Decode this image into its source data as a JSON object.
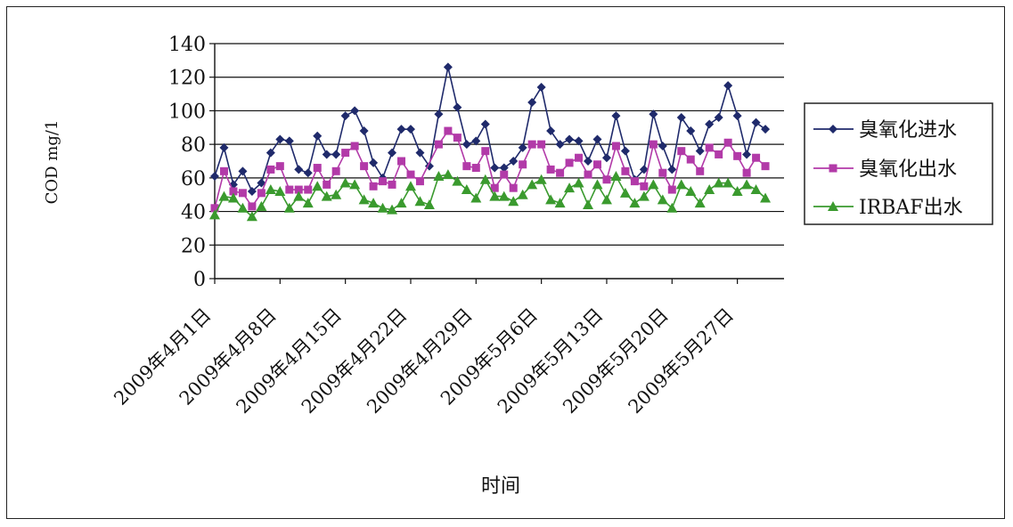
{
  "chart_data": {
    "type": "line",
    "title": "",
    "xlabel": "时间",
    "ylabel": "COD mg/1",
    "ylim": [
      0,
      140
    ],
    "yticks": [
      "0",
      "20",
      "40",
      "60",
      "80",
      "100",
      "120",
      "140"
    ],
    "grid": true,
    "legend_position": "right",
    "x_tick_labels": [
      "2009年4月1日",
      "2009年4月8日",
      "2009年4月15日",
      "2009年4月22日",
      "2009年4月29日",
      "2009年5月6日",
      "2009年5月13日",
      "2009年5月20日",
      "2009年5月27日"
    ],
    "x_start": "2009-04-01",
    "x_end": "2009-06-01",
    "series": [
      {
        "name": "臭氧化进水",
        "color": "#1f2a6b",
        "marker": "diamond",
        "values": [
          61,
          78,
          56,
          64,
          52,
          57,
          75,
          83,
          82,
          65,
          63,
          85,
          74,
          74,
          97,
          100,
          88,
          69,
          60,
          75,
          89,
          89,
          75,
          67,
          98,
          126,
          102,
          80,
          82,
          92,
          66,
          66,
          70,
          78,
          105,
          114,
          88,
          80,
          83,
          82,
          70,
          83,
          72,
          97,
          76,
          59,
          65,
          98,
          79,
          65,
          96,
          88,
          76,
          92,
          96,
          115,
          97,
          74,
          93,
          89
        ],
        "dates": [
          "2009-04-01",
          "2009-04-02",
          "2009-04-03",
          "2009-04-04",
          "2009-04-05",
          "2009-04-06",
          "2009-04-07",
          "2009-04-08",
          "2009-04-09",
          "2009-04-10",
          "2009-04-11",
          "2009-04-12",
          "2009-04-13",
          "2009-04-14",
          "2009-04-15",
          "2009-04-16",
          "2009-04-17",
          "2009-04-18",
          "2009-04-19",
          "2009-04-20",
          "2009-04-21",
          "2009-04-22",
          "2009-04-23",
          "2009-04-24",
          "2009-04-25",
          "2009-04-26",
          "2009-04-27",
          "2009-04-28",
          "2009-04-29",
          "2009-04-30",
          "2009-05-01",
          "2009-05-02",
          "2009-05-03",
          "2009-05-04",
          "2009-05-05",
          "2009-05-06",
          "2009-05-07",
          "2009-05-08",
          "2009-05-09",
          "2009-05-10",
          "2009-05-11",
          "2009-05-12",
          "2009-05-13",
          "2009-05-14",
          "2009-05-15",
          "2009-05-16",
          "2009-05-17",
          "2009-05-18",
          "2009-05-19",
          "2009-05-20",
          "2009-05-21",
          "2009-05-22",
          "2009-05-23",
          "2009-05-24",
          "2009-05-25",
          "2009-05-26",
          "2009-05-27",
          "2009-05-28",
          "2009-05-29",
          "2009-05-30"
        ]
      },
      {
        "name": "臭氧化出水",
        "color": "#b23aa8",
        "marker": "square",
        "values": [
          42,
          64,
          52,
          51,
          43,
          51,
          65,
          67,
          53,
          53,
          53,
          66,
          56,
          64,
          75,
          79,
          67,
          55,
          58,
          56,
          70,
          62,
          58,
          80,
          88,
          84,
          67,
          66,
          76,
          54,
          62,
          54,
          68,
          80,
          80,
          65,
          63,
          69,
          72,
          62,
          68,
          59,
          79,
          64,
          58,
          55,
          80,
          63,
          53,
          76,
          71,
          64,
          78,
          74,
          81,
          73,
          63,
          72,
          67
        ],
        "dates": [
          "2009-04-01",
          "2009-04-02",
          "2009-04-03",
          "2009-04-04",
          "2009-04-05",
          "2009-04-06",
          "2009-04-07",
          "2009-04-08",
          "2009-04-09",
          "2009-04-10",
          "2009-04-11",
          "2009-04-12",
          "2009-04-13",
          "2009-04-14",
          "2009-04-15",
          "2009-04-16",
          "2009-04-17",
          "2009-04-18",
          "2009-04-19",
          "2009-04-20",
          "2009-04-21",
          "2009-04-22",
          "2009-04-23",
          "2009-04-25",
          "2009-04-26",
          "2009-04-27",
          "2009-04-28",
          "2009-04-29",
          "2009-04-30",
          "2009-05-01",
          "2009-05-02",
          "2009-05-03",
          "2009-05-04",
          "2009-05-05",
          "2009-05-06",
          "2009-05-07",
          "2009-05-08",
          "2009-05-09",
          "2009-05-10",
          "2009-05-11",
          "2009-05-12",
          "2009-05-13",
          "2009-05-14",
          "2009-05-15",
          "2009-05-16",
          "2009-05-17",
          "2009-05-18",
          "2009-05-19",
          "2009-05-20",
          "2009-05-21",
          "2009-05-22",
          "2009-05-23",
          "2009-05-24",
          "2009-05-25",
          "2009-05-26",
          "2009-05-27",
          "2009-05-28",
          "2009-05-29",
          "2009-05-30"
        ]
      },
      {
        "name": "IRBAF出水",
        "color": "#3a9a2e",
        "marker": "triangle",
        "values": [
          38,
          49,
          48,
          42,
          37,
          43,
          53,
          52,
          42,
          49,
          45,
          55,
          49,
          50,
          57,
          56,
          47,
          45,
          42,
          41,
          45,
          55,
          46,
          44,
          61,
          62,
          58,
          53,
          48,
          59,
          49,
          49,
          46,
          50,
          56,
          59,
          47,
          45,
          54,
          57,
          44,
          56,
          47,
          61,
          51,
          45,
          49,
          56,
          47,
          42,
          56,
          52,
          45,
          53,
          57,
          57,
          52,
          56,
          53,
          48
        ],
        "dates": [
          "2009-04-01",
          "2009-04-02",
          "2009-04-03",
          "2009-04-04",
          "2009-04-05",
          "2009-04-06",
          "2009-04-07",
          "2009-04-08",
          "2009-04-09",
          "2009-04-10",
          "2009-04-11",
          "2009-04-12",
          "2009-04-13",
          "2009-04-14",
          "2009-04-15",
          "2009-04-16",
          "2009-04-17",
          "2009-04-18",
          "2009-04-19",
          "2009-04-20",
          "2009-04-21",
          "2009-04-22",
          "2009-04-23",
          "2009-04-24",
          "2009-04-25",
          "2009-04-26",
          "2009-04-27",
          "2009-04-28",
          "2009-04-29",
          "2009-04-30",
          "2009-05-01",
          "2009-05-02",
          "2009-05-03",
          "2009-05-04",
          "2009-05-05",
          "2009-05-06",
          "2009-05-07",
          "2009-05-08",
          "2009-05-09",
          "2009-05-10",
          "2009-05-11",
          "2009-05-12",
          "2009-05-13",
          "2009-05-14",
          "2009-05-15",
          "2009-05-16",
          "2009-05-17",
          "2009-05-18",
          "2009-05-19",
          "2009-05-20",
          "2009-05-21",
          "2009-05-22",
          "2009-05-23",
          "2009-05-24",
          "2009-05-25",
          "2009-05-26",
          "2009-05-27",
          "2009-05-28",
          "2009-05-29",
          "2009-05-30"
        ]
      }
    ]
  }
}
